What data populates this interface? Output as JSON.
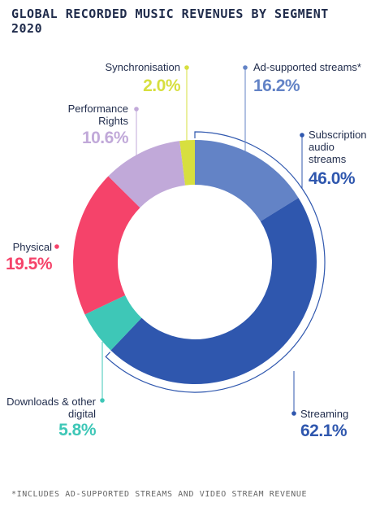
{
  "chart_data": {
    "type": "donut",
    "title": "GLOBAL RECORDED MUSIC REVENUES BY SEGMENT 2020",
    "categories": [
      "Ad-supported streams*",
      "Subscription audio streams",
      "Downloads & other digital",
      "Physical",
      "Performance Rights",
      "Synchronisation"
    ],
    "values": [
      16.2,
      46.0,
      5.8,
      19.5,
      10.6,
      2.0
    ],
    "value_labels": [
      "16.2%",
      "46.0%",
      "5.8%",
      "19.5%",
      "10.6%",
      "2.0%"
    ],
    "colors": [
      "#6383c6",
      "#2f57ae",
      "#3ec7b7",
      "#f5436a",
      "#c1a9d9",
      "#d7df3f"
    ],
    "annotations": [
      {
        "text": "Streaming",
        "value": 62.1,
        "label": "62.1%"
      }
    ],
    "footnote": "*INCLUDES AD-SUPPORTED STREAMS AND VIDEO STREAM REVENUE"
  }
}
